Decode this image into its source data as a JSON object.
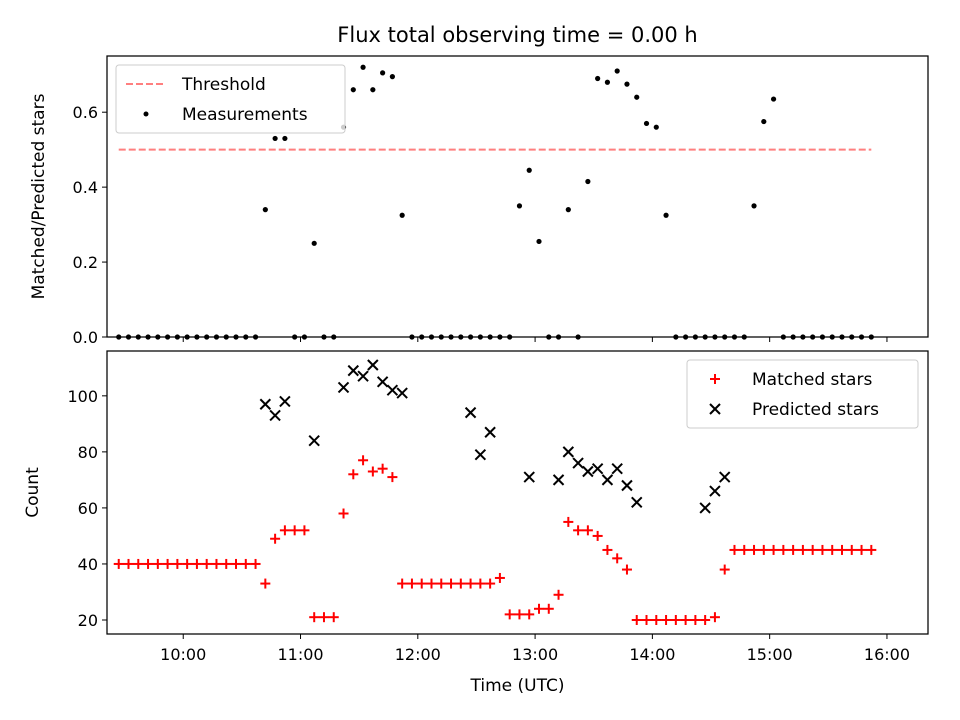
{
  "chart_data": [
    {
      "type": "scatter",
      "title": "Flux total observing time = 0.00 h",
      "xlabel": "",
      "ylabel": "Matched/Predicted stars",
      "xlim": [
        "09:21",
        "16:21"
      ],
      "ylim": [
        0,
        0.75
      ],
      "yticks": [
        0.0,
        0.2,
        0.4,
        0.6
      ],
      "ytick_labels": [
        "0.0",
        "0.2",
        "0.4",
        "0.6"
      ],
      "legend": {
        "position": "top-left",
        "entries": [
          "Threshold",
          "Measurements"
        ]
      },
      "series": [
        {
          "name": "Threshold",
          "style": "dashed-line",
          "color": "#ff7f7f",
          "x": [
            "09:27",
            "15:52"
          ],
          "y": [
            0.5,
            0.5
          ]
        },
        {
          "name": "Measurements",
          "style": "dot",
          "color": "#000000",
          "x": [
            "09:27",
            "09:32",
            "09:37",
            "09:42",
            "09:47",
            "09:52",
            "09:57",
            "10:02",
            "10:07",
            "10:12",
            "10:17",
            "10:22",
            "10:27",
            "10:32",
            "10:37",
            "10:42",
            "10:47",
            "10:52",
            "10:57",
            "11:02",
            "11:07",
            "11:12",
            "11:17",
            "11:22",
            "11:27",
            "11:32",
            "11:37",
            "11:42",
            "11:47",
            "11:52",
            "11:57",
            "12:02",
            "12:07",
            "12:12",
            "12:17",
            "12:22",
            "12:27",
            "12:32",
            "12:37",
            "12:42",
            "12:47",
            "12:52",
            "12:57",
            "13:02",
            "13:07",
            "13:12",
            "13:17",
            "13:22",
            "13:27",
            "13:32",
            "13:37",
            "13:42",
            "13:47",
            "13:52",
            "13:57",
            "14:02",
            "14:07",
            "14:12",
            "14:17",
            "14:22",
            "14:27",
            "14:32",
            "14:37",
            "14:42",
            "14:47",
            "14:52",
            "14:57",
            "15:02",
            "15:07",
            "15:12",
            "15:17",
            "15:22",
            "15:27",
            "15:32",
            "15:37",
            "15:42",
            "15:47",
            "15:52"
          ],
          "y": [
            0,
            0,
            0,
            0,
            0,
            0,
            0,
            0,
            0,
            0,
            0,
            0,
            0,
            0,
            0,
            0.34,
            0.53,
            0.53,
            0,
            0,
            0.25,
            0,
            0,
            0.56,
            0.66,
            0.72,
            0.66,
            0.705,
            0.695,
            0.325,
            0,
            0,
            0,
            0,
            0,
            0,
            0,
            0,
            0,
            0,
            0,
            0.35,
            0.445,
            0.255,
            0,
            0,
            0.34,
            0,
            0.415,
            0.69,
            0.68,
            0.71,
            0.675,
            0.64,
            0.57,
            0.56,
            0.325,
            0,
            0,
            0,
            0,
            0,
            0,
            0,
            0,
            0.35,
            0.575,
            0.635,
            0,
            0,
            0,
            0,
            0,
            0,
            0,
            0,
            0,
            0
          ]
        }
      ]
    },
    {
      "type": "scatter",
      "title": "",
      "xlabel": "Time (UTC)",
      "ylabel": "Count",
      "xlim": [
        "09:21",
        "16:21"
      ],
      "ylim": [
        15,
        116
      ],
      "yticks": [
        20,
        40,
        60,
        80,
        100
      ],
      "ytick_labels": [
        "20",
        "40",
        "60",
        "80",
        "100"
      ],
      "xticks": [
        "10:00",
        "11:00",
        "12:00",
        "13:00",
        "14:00",
        "15:00",
        "16:00"
      ],
      "legend": {
        "position": "top-right",
        "entries": [
          "Matched stars",
          "Predicted stars"
        ]
      },
      "series": [
        {
          "name": "Matched stars",
          "style": "plus",
          "color": "#ff0000",
          "x": [
            "09:27",
            "09:32",
            "09:37",
            "09:42",
            "09:47",
            "09:52",
            "09:57",
            "10:02",
            "10:07",
            "10:12",
            "10:17",
            "10:22",
            "10:27",
            "10:32",
            "10:37",
            "10:42",
            "10:47",
            "10:52",
            "10:57",
            "11:02",
            "11:07",
            "11:12",
            "11:17",
            "11:22",
            "11:27",
            "11:32",
            "11:37",
            "11:42",
            "11:47",
            "11:52",
            "11:57",
            "12:02",
            "12:07",
            "12:12",
            "12:17",
            "12:22",
            "12:27",
            "12:32",
            "12:37",
            "12:42",
            "12:47",
            "12:52",
            "12:57",
            "13:02",
            "13:07",
            "13:12",
            "13:17",
            "13:22",
            "13:27",
            "13:32",
            "13:37",
            "13:42",
            "13:47",
            "13:52",
            "13:57",
            "14:02",
            "14:07",
            "14:12",
            "14:17",
            "14:22",
            "14:27",
            "14:32",
            "14:37",
            "14:42",
            "14:47",
            "14:52",
            "14:57",
            "15:02",
            "15:07",
            "15:12",
            "15:17",
            "15:22",
            "15:27",
            "15:32",
            "15:37",
            "15:42",
            "15:47",
            "15:52"
          ],
          "y": [
            40,
            40,
            40,
            40,
            40,
            40,
            40,
            40,
            40,
            40,
            40,
            40,
            40,
            40,
            40,
            33,
            49,
            52,
            52,
            52,
            21,
            21,
            21,
            58,
            72,
            77,
            73,
            74,
            71,
            33,
            33,
            33,
            33,
            33,
            33,
            33,
            33,
            33,
            33,
            35,
            22,
            22,
            22,
            24,
            24,
            29,
            55,
            52,
            52,
            50,
            45,
            42,
            38,
            20,
            20,
            20,
            20,
            20,
            20,
            20,
            20,
            21,
            38,
            45,
            45,
            45,
            45,
            45,
            45,
            45,
            45,
            45,
            45,
            45,
            45,
            45,
            45,
            45
          ]
        },
        {
          "name": "Predicted stars",
          "style": "x",
          "color": "#000000",
          "x": [
            "10:42",
            "10:47",
            "10:52",
            "11:07",
            "11:22",
            "11:27",
            "11:32",
            "11:37",
            "11:42",
            "11:47",
            "11:52",
            "12:27",
            "12:32",
            "12:37",
            "12:57",
            "13:12",
            "13:17",
            "13:22",
            "13:27",
            "13:32",
            "13:37",
            "13:42",
            "13:47",
            "13:52",
            "14:27",
            "14:32",
            "14:37"
          ],
          "y": [
            97,
            93,
            98,
            84,
            103,
            109,
            107,
            111,
            105,
            102,
            101,
            94,
            79,
            87,
            71,
            70,
            80,
            76,
            73,
            74,
            70,
            74,
            68,
            62,
            60,
            66,
            71
          ]
        }
      ]
    }
  ]
}
